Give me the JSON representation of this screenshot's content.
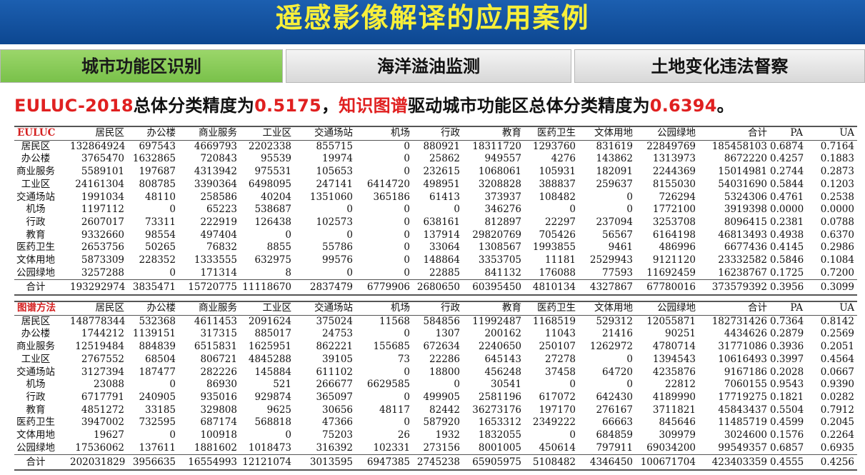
{
  "header": {
    "title": "遥感影像解译的应用案例"
  },
  "tabs": [
    {
      "label": "城市功能区识别"
    },
    {
      "label": "海洋溢油监测"
    },
    {
      "label": "土地变化违法督察"
    }
  ],
  "summary": {
    "p1": "EULUC-2018",
    "p2": "总体分类精度为",
    "p3": "0.5175",
    "p4": "，",
    "p5": "知识图谱",
    "p6": "驱动城市功能区总体分类精度为",
    "p7": "0.6394",
    "p8": "。"
  },
  "colors": {
    "header_bg": "#0d4791",
    "title": "#f7ef3a",
    "accent_red": "#e02020",
    "tab_active": "#79c14a"
  },
  "tables": [
    {
      "columns": [
        "EULUC",
        "居民区",
        "办公楼",
        "商业服务",
        "工业区",
        "交通场站",
        "机场",
        "行政",
        "教育",
        "医药卫生",
        "文体用地",
        "公园绿地",
        "合计",
        "PA",
        "UA"
      ],
      "rows": [
        [
          "居民区",
          "132864924",
          "697543",
          "4669793",
          "2202338",
          "855715",
          "0",
          "880921",
          "18311720",
          "1293760",
          "831619",
          "22849769",
          "185458103",
          "0.6874",
          "0.7164"
        ],
        [
          "办公楼",
          "3765470",
          "1632865",
          "720843",
          "95539",
          "19974",
          "0",
          "25862",
          "949557",
          "4276",
          "143862",
          "1313973",
          "8672220",
          "0.4257",
          "0.1883"
        ],
        [
          "商业服务",
          "5589101",
          "197687",
          "4313942",
          "975531",
          "105653",
          "0",
          "232615",
          "1068061",
          "105931",
          "182091",
          "2244369",
          "15014981",
          "0.2744",
          "0.2873"
        ],
        [
          "工业区",
          "24161304",
          "808785",
          "3390364",
          "6498095",
          "247141",
          "6414720",
          "498951",
          "3208828",
          "388837",
          "259637",
          "8155030",
          "54031690",
          "0.5844",
          "0.1203"
        ],
        [
          "交通场站",
          "1991034",
          "48110",
          "258586",
          "40204",
          "1351060",
          "365186",
          "61413",
          "373937",
          "108482",
          "0",
          "726294",
          "5324306",
          "0.4761",
          "0.2538"
        ],
        [
          "机场",
          "1197112",
          "0",
          "65223",
          "538687",
          "0",
          "0",
          "0",
          "346276",
          "0",
          "0",
          "1772100",
          "3919398",
          "0.0000",
          "0.0000"
        ],
        [
          "行政",
          "2607017",
          "73311",
          "222919",
          "126438",
          "102573",
          "0",
          "638161",
          "812897",
          "22297",
          "237094",
          "3253708",
          "8096415",
          "0.2381",
          "0.0788"
        ],
        [
          "教育",
          "9332660",
          "98554",
          "497404",
          "0",
          "0",
          "0",
          "137914",
          "29820769",
          "705426",
          "56567",
          "6164198",
          "46813493",
          "0.4938",
          "0.6370"
        ],
        [
          "医药卫生",
          "2653756",
          "50265",
          "76832",
          "8855",
          "55786",
          "0",
          "33064",
          "1308567",
          "1993855",
          "9461",
          "486996",
          "6677436",
          "0.4145",
          "0.2986"
        ],
        [
          "文体用地",
          "5873309",
          "228352",
          "1333555",
          "632975",
          "99576",
          "0",
          "148864",
          "3353705",
          "11181",
          "2529943",
          "9121120",
          "23332582",
          "0.5846",
          "0.1084"
        ],
        [
          "公园绿地",
          "3257288",
          "0",
          "171314",
          "8",
          "0",
          "0",
          "22885",
          "841132",
          "176088",
          "77593",
          "11692459",
          "16238767",
          "0.1725",
          "0.7200"
        ]
      ],
      "total": [
        "合计",
        "193292974",
        "3835471",
        "15720775",
        "11118670",
        "2837479",
        "6779906",
        "2680650",
        "60395450",
        "4810134",
        "4327867",
        "67780016",
        "373579392",
        "0.3956",
        "0.3099"
      ]
    },
    {
      "columns": [
        "图谱方法",
        "居民区",
        "办公楼",
        "商业服务",
        "工业区",
        "交通场站",
        "机场",
        "行政",
        "教育",
        "医药卫生",
        "文体用地",
        "公园绿地",
        "合计",
        "PA",
        "UA"
      ],
      "rows": [
        [
          "居民区",
          "148778344",
          "532368",
          "4611453",
          "2091624",
          "375024",
          "11568",
          "584856",
          "11992487",
          "1168519",
          "529312",
          "12055871",
          "182731426",
          "0.7364",
          "0.8142"
        ],
        [
          "办公楼",
          "1744212",
          "1139151",
          "317315",
          "885017",
          "24753",
          "0",
          "1307",
          "200162",
          "11043",
          "21416",
          "90251",
          "4434626",
          "0.2879",
          "0.2569"
        ],
        [
          "商业服务",
          "12519484",
          "884839",
          "6515831",
          "1625951",
          "862221",
          "155685",
          "672634",
          "2240650",
          "250107",
          "1262972",
          "4780714",
          "31771086",
          "0.3936",
          "0.2051"
        ],
        [
          "工业区",
          "2767552",
          "68504",
          "806721",
          "4845288",
          "39105",
          "73",
          "22286",
          "645143",
          "27278",
          "0",
          "1394543",
          "10616493",
          "0.3997",
          "0.4564"
        ],
        [
          "交通场站",
          "3127394",
          "187477",
          "282226",
          "145884",
          "611102",
          "0",
          "18800",
          "456248",
          "37458",
          "64720",
          "4235876",
          "9167186",
          "0.2028",
          "0.0667"
        ],
        [
          "机场",
          "23088",
          "0",
          "86930",
          "521",
          "266677",
          "6629585",
          "0",
          "30541",
          "0",
          "0",
          "22812",
          "7060155",
          "0.9543",
          "0.9390"
        ],
        [
          "行政",
          "6717791",
          "240905",
          "935016",
          "929874",
          "365097",
          "0",
          "499905",
          "2581196",
          "617072",
          "642430",
          "4189990",
          "17719275",
          "0.1821",
          "0.0282"
        ],
        [
          "教育",
          "4851272",
          "33185",
          "329808",
          "9625",
          "30656",
          "48117",
          "82442",
          "36273176",
          "197170",
          "276167",
          "3711821",
          "45843437",
          "0.5504",
          "0.7912"
        ],
        [
          "医药卫生",
          "3947002",
          "732595",
          "687174",
          "568818",
          "47366",
          "0",
          "587920",
          "1653312",
          "2349222",
          "66663",
          "845646",
          "11485719",
          "0.4599",
          "0.2045"
        ],
        [
          "文体用地",
          "19627",
          "0",
          "100918",
          "0",
          "75203",
          "26",
          "1932",
          "1832055",
          "0",
          "684859",
          "309979",
          "3024600",
          "0.1576",
          "0.2264"
        ],
        [
          "公园绿地",
          "17536062",
          "137611",
          "1881602",
          "1018473",
          "316392",
          "102331",
          "273156",
          "8001005",
          "450614",
          "797911",
          "69034200",
          "99549357",
          "0.6857",
          "0.6935"
        ]
      ],
      "total": [
        "合计",
        "202031829",
        "3956635",
        "16554993",
        "12121074",
        "3013595",
        "6947385",
        "2745238",
        "65905975",
        "5108482",
        "4346450",
        "100671704",
        "423403359",
        "0.4555",
        "0.4256"
      ]
    }
  ]
}
